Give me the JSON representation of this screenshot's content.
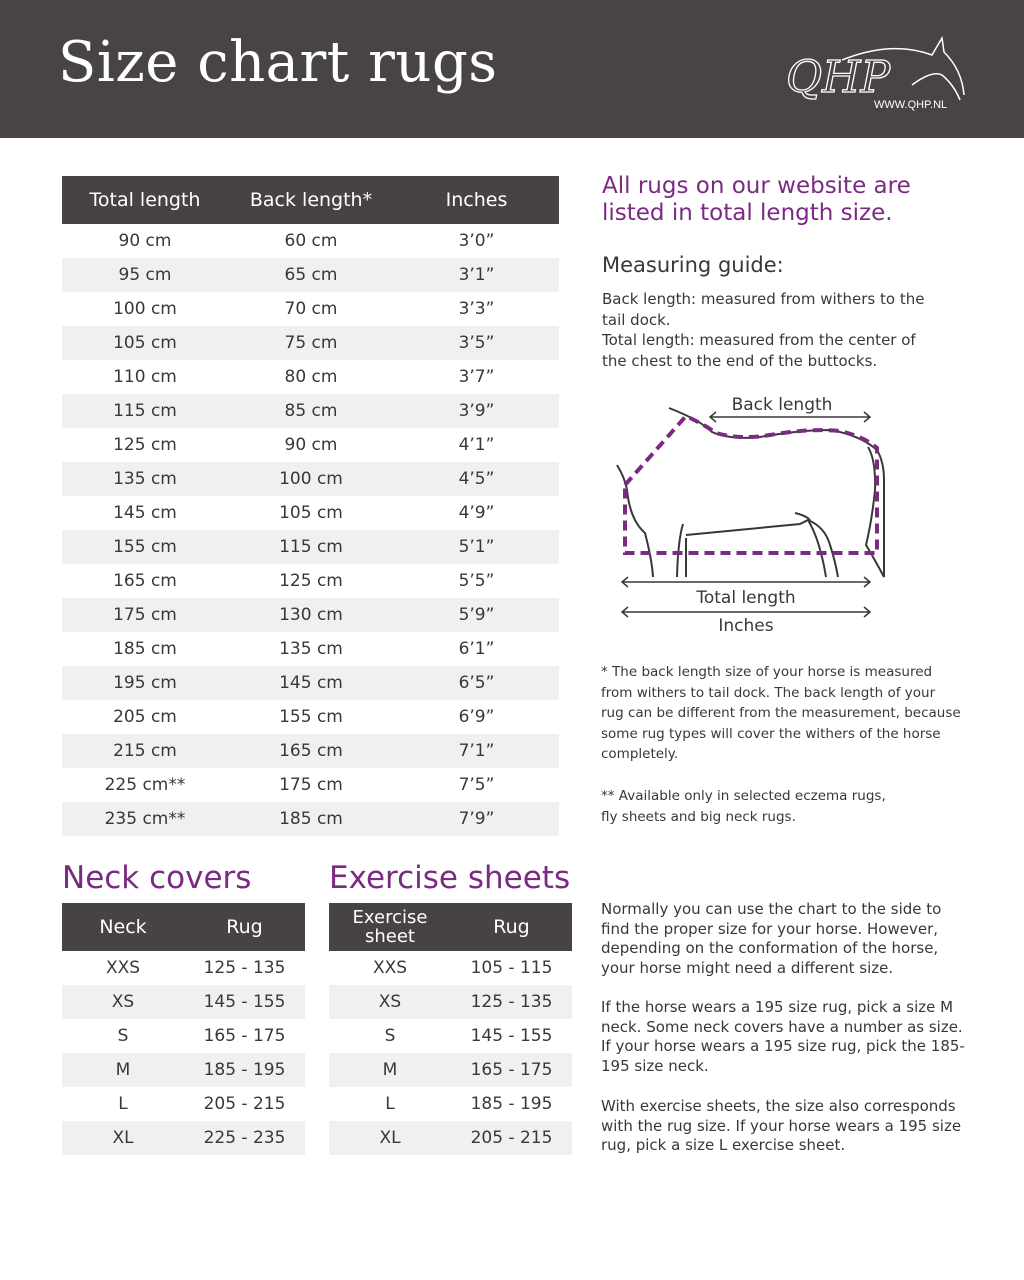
{
  "header": {
    "title": "Size chart rugs",
    "logo_text": "QHP",
    "logo_url": "WWW.QHP.NL"
  },
  "rug_table": {
    "columns": [
      "Total length",
      "Back length*",
      "Inches"
    ],
    "rows": [
      [
        "90 cm",
        "60 cm",
        "3’0”"
      ],
      [
        "95 cm",
        "65 cm",
        "3’1”"
      ],
      [
        "100 cm",
        "70 cm",
        "3’3”"
      ],
      [
        "105 cm",
        "75 cm",
        "3’5”"
      ],
      [
        "110 cm",
        "80 cm",
        "3’7”"
      ],
      [
        "115 cm",
        "85 cm",
        "3’9”"
      ],
      [
        "125 cm",
        "90 cm",
        "4’1”"
      ],
      [
        "135 cm",
        "100 cm",
        "4’5”"
      ],
      [
        "145 cm",
        "105 cm",
        "4’9”"
      ],
      [
        "155 cm",
        "115 cm",
        "5’1”"
      ],
      [
        "165 cm",
        "125 cm",
        "5’5”"
      ],
      [
        "175 cm",
        "130 cm",
        "5’9”"
      ],
      [
        "185 cm",
        "135 cm",
        "6’1”"
      ],
      [
        "195 cm",
        "145 cm",
        "6’5”"
      ],
      [
        "205 cm",
        "155 cm",
        "6’9”"
      ],
      [
        "215 cm",
        "165 cm",
        "7’1”"
      ],
      [
        "225 cm**",
        "175 cm",
        "7’5”"
      ],
      [
        "235 cm**",
        "185 cm",
        "7’9”"
      ]
    ]
  },
  "intro": "All rugs on our website are listed in total length size.",
  "guide": {
    "title": "Measuring guide:",
    "text1": "Back length: measured from withers to the tail dock.",
    "text2": "Total length: measured from the center of the chest to the end of the buttocks."
  },
  "diagram": {
    "back_label": "Back length",
    "total_label": "Total length",
    "inches_label": "Inches",
    "accent": "#7b2a82"
  },
  "notes": {
    "n1": "* The back length size of your horse is measured from withers to tail dock. The back length of your rug can be different from the measurement, because some rug types will cover the withers of the horse completely.",
    "n2": "** Available only in selected eczema rugs, fly sheets and big neck rugs."
  },
  "neck": {
    "title": "Neck covers",
    "columns": [
      "Neck",
      "Rug"
    ],
    "rows": [
      [
        "XXS",
        "125 - 135"
      ],
      [
        "XS",
        "145 - 155"
      ],
      [
        "S",
        "165 - 175"
      ],
      [
        "M",
        "185 - 195"
      ],
      [
        "L",
        "205 - 215"
      ],
      [
        "XL",
        "225 - 235"
      ]
    ]
  },
  "exercise": {
    "title": "Exercise sheets",
    "columns": [
      "Exercise sheet",
      "Rug"
    ],
    "rows": [
      [
        "XXS",
        "105 - 115"
      ],
      [
        "XS",
        "125 - 135"
      ],
      [
        "S",
        "145 - 155"
      ],
      [
        "M",
        "165 - 175"
      ],
      [
        "L",
        "185 - 195"
      ],
      [
        "XL",
        "205 - 215"
      ]
    ]
  },
  "advice": {
    "p1": "Normally you can use the chart to the side to find the proper size for your horse.  However, depending on the conformation of the horse, your horse might need a different size.",
    "p2": "If the horse wears a 195 size rug, pick a size M neck. Some neck covers have a number as size. If your horse wears a 195 size rug, pick the 185-195 size neck.",
    "p3": "With exercise sheets, the size also corresponds with the rug size. If your horse wears a 195 size rug, pick a size L exercise sheet."
  },
  "colors": {
    "header_bg": "#484446",
    "accent": "#7b2a82",
    "stripe": "#f0f0f0"
  }
}
